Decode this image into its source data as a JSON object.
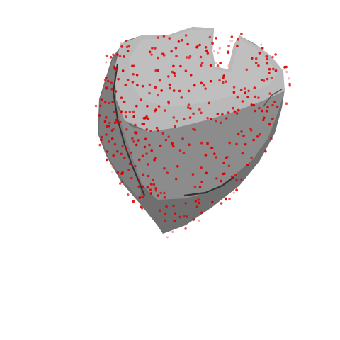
{
  "scene": {
    "background_color": "#ffffff",
    "surface_colors": {
      "top_face": "#b9b9b9",
      "front_face": "#8c8c8c",
      "left_face": "#7a7a7a",
      "lower_face": "#6f6f6f",
      "highlight": "#c8c8c8",
      "crease": "#333333"
    },
    "marker_color": "#dd0000",
    "marker_count": 620
  }
}
